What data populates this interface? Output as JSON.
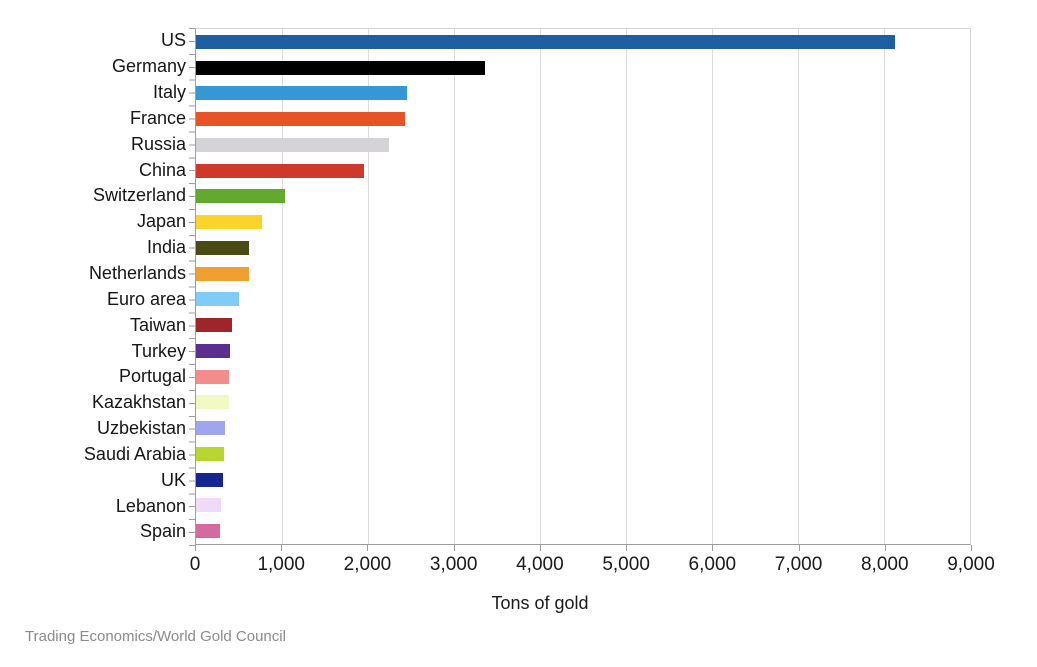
{
  "chart_data": {
    "type": "bar",
    "orientation": "horizontal",
    "title": "",
    "xlabel": "Tons of gold",
    "ylabel": "",
    "xlim": [
      0,
      9000
    ],
    "grid": "vertical-major",
    "legend": "none",
    "x_ticks": [
      0,
      1000,
      2000,
      3000,
      4000,
      5000,
      6000,
      7000,
      8000,
      9000
    ],
    "x_tick_labels": [
      "0",
      "1,000",
      "2,000",
      "3,000",
      "4,000",
      "5,000",
      "6,000",
      "7,000",
      "8,000",
      "9,000"
    ],
    "categories": [
      "US",
      "Germany",
      "Italy",
      "France",
      "Russia",
      "China",
      "Switzerland",
      "Japan",
      "India",
      "Netherlands",
      "Euro area",
      "Taiwan",
      "Turkey",
      "Portugal",
      "Kazakhstan",
      "Uzbekistan",
      "Saudi Arabia",
      "UK",
      "Lebanon",
      "Spain"
    ],
    "values": [
      8133,
      3366,
      2452,
      2436,
      2241,
      1948,
      1040,
      765,
      618,
      612,
      505,
      424,
      400,
      383,
      381,
      333,
      323,
      310,
      287,
      282
    ],
    "bar_colors": [
      "#1f5f9f",
      "#000000",
      "#3597d3",
      "#e85325",
      "#d6d3d8",
      "#cf392c",
      "#62a92f",
      "#fcd32b",
      "#4a4a15",
      "#f0a031",
      "#80ccf8",
      "#9e2629",
      "#5a2f8e",
      "#f18d8b",
      "#f2f9c2",
      "#a0a5f0",
      "#b9d530",
      "#142490",
      "#f1d9f8",
      "#d46a9e"
    ],
    "source": "Trading Economics/World Gold Council"
  }
}
